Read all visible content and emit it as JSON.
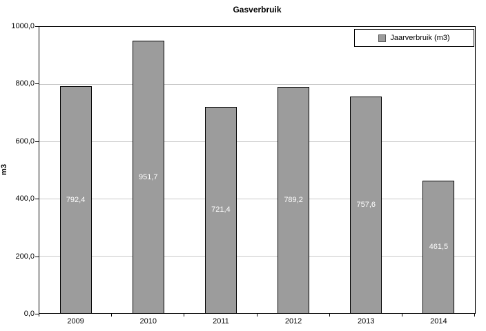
{
  "chart_data": {
    "type": "bar",
    "title": "Gasverbruik",
    "ylabel": "m3",
    "xlabel": "",
    "legend": "Jaarverbruik (m3)",
    "legend_position": "top-right",
    "grid": true,
    "categories": [
      "2009",
      "2010",
      "2011",
      "2012",
      "2013",
      "2014"
    ],
    "values": [
      792.4,
      951.7,
      721.4,
      789.2,
      757.6,
      461.5
    ],
    "value_labels": [
      "792,4",
      "951,7",
      "721,4",
      "789,2",
      "757,6",
      "461,5"
    ],
    "ylim": [
      0,
      1000
    ],
    "yticks": [
      {
        "value": 0,
        "label": "0,0"
      },
      {
        "value": 200,
        "label": "200,0"
      },
      {
        "value": 400,
        "label": "400,0"
      },
      {
        "value": 600,
        "label": "600,0"
      },
      {
        "value": 800,
        "label": "800,0"
      },
      {
        "value": 1000,
        "label": "1000,0"
      }
    ],
    "bar_color": "#9c9c9c",
    "bar_border_color": "#000000",
    "gridline_color": "#c9c9c9",
    "label_text_color": "#ffffff"
  }
}
